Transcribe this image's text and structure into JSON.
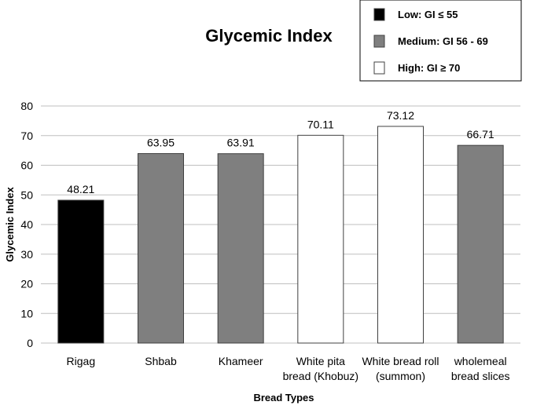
{
  "chart_data": {
    "type": "bar",
    "title": "Glycemic Index",
    "xlabel": "Bread Types",
    "ylabel": "Glycemic Index",
    "ylim": [
      0,
      80
    ],
    "yticks": [
      "0",
      "10",
      "20",
      "30",
      "40",
      "50",
      "60",
      "70",
      "80"
    ],
    "grid": true,
    "legend_position": "top-right",
    "categories": [
      [
        "Rigag"
      ],
      [
        "Shbab"
      ],
      [
        "Khameer"
      ],
      [
        "White pita",
        "bread (Khobuz)"
      ],
      [
        "White bread roll",
        "(summon)"
      ],
      [
        "wholemeal",
        "bread slices"
      ]
    ],
    "values": [
      48.21,
      63.95,
      63.91,
      70.11,
      73.12,
      66.71
    ],
    "data_labels": [
      "48.21",
      "63.95",
      "63.91",
      "70.11",
      "73.12",
      "66.71"
    ],
    "bar_class": [
      "low",
      "medium",
      "medium",
      "high",
      "high",
      "medium"
    ],
    "legend": [
      {
        "key": "low",
        "label": "Low:  GI ≤ 55"
      },
      {
        "key": "medium",
        "label": "Medium:  GI 56 - 69"
      },
      {
        "key": "high",
        "label": "High:  GI ≥ 70"
      }
    ],
    "colors": {
      "low": "#000000",
      "medium": "#7f7f7f",
      "high": "#ffffff",
      "gridline": "#bfbfbf",
      "bar_outline": "#404040"
    }
  }
}
